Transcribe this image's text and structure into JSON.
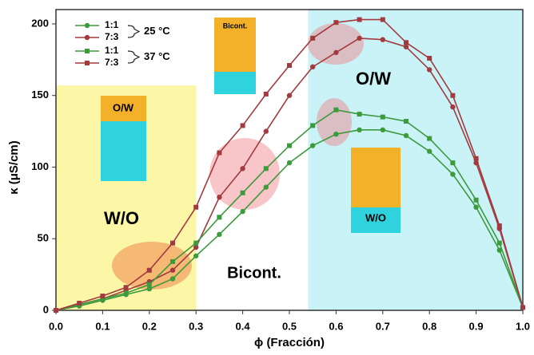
{
  "chart_data": {
    "type": "line",
    "x_label": "ϕ (Fracción)",
    "y_label": "κ (μS/cm)",
    "x": [
      0,
      0.05,
      0.1,
      0.15,
      0.2,
      0.25,
      0.3,
      0.35,
      0.4,
      0.45,
      0.5,
      0.55,
      0.6,
      0.65,
      0.7,
      0.75,
      0.8,
      0.85,
      0.9,
      0.95,
      1.0
    ],
    "series": [
      {
        "name": "1:1",
        "color": "#3d9a3d",
        "marker": "circle",
        "values": [
          0,
          3,
          7,
          11,
          15,
          22,
          38,
          53,
          69,
          86,
          103,
          115,
          123,
          126,
          126,
          122,
          111,
          95,
          72,
          42,
          2
        ]
      },
      {
        "name": "7:3",
        "color": "#a33a3f",
        "marker": "circle",
        "values": [
          0,
          4,
          8,
          14,
          20,
          28,
          44,
          79,
          99,
          125,
          150,
          170,
          180,
          190,
          189,
          184,
          168,
          142,
          103,
          57,
          2
        ]
      },
      {
        "name": "1:1",
        "color": "#3d9a3d",
        "marker": "square",
        "values": [
          0,
          4,
          8,
          12,
          18,
          34,
          47,
          65,
          82,
          99,
          115,
          129,
          140,
          137,
          135,
          132,
          120,
          103,
          77,
          47,
          2
        ]
      },
      {
        "name": "7:3",
        "color": "#a33a3f",
        "marker": "square",
        "values": [
          0,
          5,
          10,
          16,
          28,
          47,
          72,
          110,
          129,
          151,
          171,
          190,
          201,
          203,
          203,
          187,
          176,
          150,
          106,
          59,
          2
        ]
      }
    ],
    "legend_groups": [
      "25 °C",
      "37 °C"
    ],
    "regions": [
      {
        "x0": 0,
        "x1": 0.3,
        "y1": 157,
        "color": "#fbf7a6"
      },
      {
        "x0": 0.54,
        "x1": 1.0,
        "y1": 210,
        "color": "#c9f3f6"
      }
    ],
    "annotations": [
      "W/O",
      "Bicont.",
      "O/W",
      "O/W",
      "Bicont.",
      "W/O"
    ],
    "xlim": [
      0,
      1
    ],
    "ylim": [
      0,
      210
    ],
    "xticks": [
      {
        "value": 0,
        "label": "0.0"
      },
      {
        "value": 0.1,
        "label": "0.1"
      },
      {
        "value": 0.2,
        "label": "0.2"
      },
      {
        "value": 0.3,
        "label": "0.3"
      },
      {
        "value": 0.4,
        "label": "0.4"
      },
      {
        "value": 0.5,
        "label": "0.5"
      },
      {
        "value": 0.6,
        "label": "0.6"
      },
      {
        "value": 0.7,
        "label": "0.7"
      },
      {
        "value": 0.8,
        "label": "0.8"
      },
      {
        "value": 0.9,
        "label": "0.9"
      },
      {
        "value": 1.0,
        "label": "1.0"
      }
    ],
    "yticks": [
      0,
      50,
      100,
      150,
      200
    ]
  }
}
